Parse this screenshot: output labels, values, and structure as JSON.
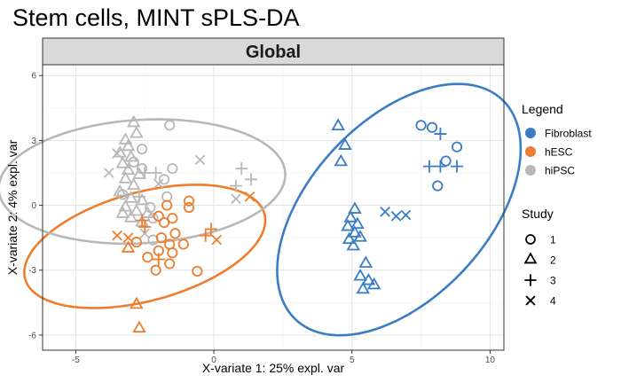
{
  "chart_data": {
    "type": "scatter",
    "title": "Stem cells, MINT sPLS-DA",
    "panel_label": "Global",
    "xlabel": "X-variate 1: 25% expl. var",
    "ylabel": "X-variate 2: 4% expl. var",
    "xlim": [
      -6.2,
      10.5
    ],
    "ylim": [
      -6.7,
      6.5
    ],
    "x_ticks": [
      -5,
      0,
      5,
      10
    ],
    "y_ticks": [
      -6,
      -3,
      0,
      3,
      6
    ],
    "x_tick_labels": [
      "-5",
      "0",
      "5",
      "10"
    ],
    "y_tick_labels": [
      "-6",
      "-3",
      "0",
      "3",
      "6"
    ],
    "grid": true,
    "legend_position": "right",
    "color_legend_title": "Legend",
    "shape_legend_title": "Study",
    "groups": [
      {
        "name": "Fibroblast",
        "color": "#3A7DC4"
      },
      {
        "name": "hESC",
        "color": "#EE7D2E"
      },
      {
        "name": "hiPSC",
        "color": "#B8B8B8"
      }
    ],
    "studies": [
      {
        "name": "1",
        "shape": "circle"
      },
      {
        "name": "2",
        "shape": "triangle"
      },
      {
        "name": "3",
        "shape": "plus"
      },
      {
        "name": "4",
        "shape": "cross"
      }
    ],
    "ellipses": [
      {
        "group": "Fibroblast",
        "cx": 6.7,
        "cy": -0.2,
        "rx": 6.4,
        "ry": 3.5,
        "angle_deg": 60
      },
      {
        "group": "hESC",
        "cx": -2.5,
        "cy": -1.9,
        "rx": 4.6,
        "ry": 2.45,
        "angle_deg": 22
      },
      {
        "group": "hiPSC",
        "cx": -2.6,
        "cy": 1.1,
        "rx": 5.2,
        "ry": 2.85,
        "angle_deg": 5
      }
    ],
    "points": [
      {
        "x": 7.5,
        "y": 3.7,
        "group": "Fibroblast",
        "study": "1"
      },
      {
        "x": 7.9,
        "y": 3.6,
        "group": "Fibroblast",
        "study": "1"
      },
      {
        "x": 8.8,
        "y": 2.7,
        "group": "Fibroblast",
        "study": "1"
      },
      {
        "x": 8.4,
        "y": 2.05,
        "group": "Fibroblast",
        "study": "1"
      },
      {
        "x": 8.1,
        "y": 0.9,
        "group": "Fibroblast",
        "study": "1"
      },
      {
        "x": 4.5,
        "y": 3.65,
        "group": "Fibroblast",
        "study": "2"
      },
      {
        "x": 4.75,
        "y": 2.75,
        "group": "Fibroblast",
        "study": "2"
      },
      {
        "x": 4.6,
        "y": 2.0,
        "group": "Fibroblast",
        "study": "2"
      },
      {
        "x": 5.1,
        "y": -0.2,
        "group": "Fibroblast",
        "study": "2"
      },
      {
        "x": 4.95,
        "y": -0.6,
        "group": "Fibroblast",
        "study": "2"
      },
      {
        "x": 5.2,
        "y": -0.9,
        "group": "Fibroblast",
        "study": "2"
      },
      {
        "x": 4.85,
        "y": -1.0,
        "group": "Fibroblast",
        "study": "2"
      },
      {
        "x": 5.1,
        "y": -1.3,
        "group": "Fibroblast",
        "study": "2"
      },
      {
        "x": 5.3,
        "y": -1.5,
        "group": "Fibroblast",
        "study": "2"
      },
      {
        "x": 4.9,
        "y": -1.6,
        "group": "Fibroblast",
        "study": "2"
      },
      {
        "x": 5.05,
        "y": -1.9,
        "group": "Fibroblast",
        "study": "2"
      },
      {
        "x": 5.5,
        "y": -2.7,
        "group": "Fibroblast",
        "study": "2"
      },
      {
        "x": 5.3,
        "y": -3.3,
        "group": "Fibroblast",
        "study": "2"
      },
      {
        "x": 5.6,
        "y": -3.5,
        "group": "Fibroblast",
        "study": "2"
      },
      {
        "x": 5.8,
        "y": -3.7,
        "group": "Fibroblast",
        "study": "2"
      },
      {
        "x": 5.4,
        "y": -3.9,
        "group": "Fibroblast",
        "study": "2"
      },
      {
        "x": 8.2,
        "y": 3.3,
        "group": "Fibroblast",
        "study": "3"
      },
      {
        "x": 7.8,
        "y": 1.8,
        "group": "Fibroblast",
        "study": "3"
      },
      {
        "x": 8.2,
        "y": 1.8,
        "group": "Fibroblast",
        "study": "3"
      },
      {
        "x": 8.8,
        "y": 1.8,
        "group": "Fibroblast",
        "study": "3"
      },
      {
        "x": 6.2,
        "y": -0.3,
        "group": "Fibroblast",
        "study": "4"
      },
      {
        "x": 6.6,
        "y": -0.5,
        "group": "Fibroblast",
        "study": "4"
      },
      {
        "x": 6.95,
        "y": -0.45,
        "group": "Fibroblast",
        "study": "4"
      },
      {
        "x": -1.7,
        "y": 0.0,
        "group": "hESC",
        "study": "1"
      },
      {
        "x": -0.9,
        "y": 0.2,
        "group": "hESC",
        "study": "1"
      },
      {
        "x": -0.9,
        "y": -0.1,
        "group": "hESC",
        "study": "1"
      },
      {
        "x": -2.0,
        "y": -0.5,
        "group": "hESC",
        "study": "1"
      },
      {
        "x": -1.5,
        "y": -0.6,
        "group": "hESC",
        "study": "1"
      },
      {
        "x": -1.8,
        "y": -0.8,
        "group": "hESC",
        "study": "1"
      },
      {
        "x": -1.4,
        "y": -1.3,
        "group": "hESC",
        "study": "1"
      },
      {
        "x": -1.9,
        "y": -1.5,
        "group": "hESC",
        "study": "1"
      },
      {
        "x": -1.6,
        "y": -1.8,
        "group": "hESC",
        "study": "1"
      },
      {
        "x": -1.1,
        "y": -1.8,
        "group": "hESC",
        "study": "1"
      },
      {
        "x": -2.0,
        "y": -2.1,
        "group": "hESC",
        "study": "1"
      },
      {
        "x": -1.5,
        "y": -2.2,
        "group": "hESC",
        "study": "1"
      },
      {
        "x": -2.4,
        "y": -2.4,
        "group": "hESC",
        "study": "1"
      },
      {
        "x": -1.6,
        "y": -2.7,
        "group": "hESC",
        "study": "1"
      },
      {
        "x": -2.1,
        "y": -3.0,
        "group": "hESC",
        "study": "1"
      },
      {
        "x": -0.6,
        "y": -3.05,
        "group": "hESC",
        "study": "1"
      },
      {
        "x": -2.8,
        "y": -1.7,
        "group": "hESC",
        "study": "1"
      },
      {
        "x": -3.1,
        "y": -2.0,
        "group": "hESC",
        "study": "2"
      },
      {
        "x": -2.8,
        "y": -4.6,
        "group": "hESC",
        "study": "2"
      },
      {
        "x": -2.7,
        "y": -5.7,
        "group": "hESC",
        "study": "2"
      },
      {
        "x": -2.0,
        "y": -2.5,
        "group": "hESC",
        "study": "3"
      },
      {
        "x": -2.6,
        "y": -0.7,
        "group": "hESC",
        "study": "3"
      },
      {
        "x": -2.5,
        "y": -1.0,
        "group": "hESC",
        "study": "3"
      },
      {
        "x": -0.3,
        "y": -1.4,
        "group": "hESC",
        "study": "3"
      },
      {
        "x": -0.1,
        "y": -1.1,
        "group": "hESC",
        "study": "3"
      },
      {
        "x": -3.5,
        "y": -1.4,
        "group": "hESC",
        "study": "4"
      },
      {
        "x": -3.1,
        "y": -1.5,
        "group": "hESC",
        "study": "4"
      },
      {
        "x": 0.1,
        "y": -1.6,
        "group": "hESC",
        "study": "4"
      },
      {
        "x": 1.3,
        "y": 0.4,
        "group": "hESC",
        "study": "4"
      },
      {
        "x": -1.6,
        "y": 3.7,
        "group": "hiPSC",
        "study": "1"
      },
      {
        "x": -2.9,
        "y": 2.0,
        "group": "hiPSC",
        "study": "1"
      },
      {
        "x": -2.6,
        "y": 2.6,
        "group": "hiPSC",
        "study": "1"
      },
      {
        "x": -2.6,
        "y": 1.7,
        "group": "hiPSC",
        "study": "1"
      },
      {
        "x": -1.5,
        "y": 1.7,
        "group": "hiPSC",
        "study": "1"
      },
      {
        "x": -1.8,
        "y": 1.2,
        "group": "hiPSC",
        "study": "1"
      },
      {
        "x": -1.7,
        "y": 0.4,
        "group": "hiPSC",
        "study": "1"
      },
      {
        "x": -2.3,
        "y": -0.1,
        "group": "hiPSC",
        "study": "1"
      },
      {
        "x": -2.2,
        "y": -0.6,
        "group": "hiPSC",
        "study": "1"
      },
      {
        "x": -3.3,
        "y": 0.5,
        "group": "hiPSC",
        "study": "1"
      },
      {
        "x": -2.2,
        "y": -1.6,
        "group": "hiPSC",
        "study": "1"
      },
      {
        "x": -2.9,
        "y": 3.8,
        "group": "hiPSC",
        "study": "2"
      },
      {
        "x": -2.8,
        "y": 3.3,
        "group": "hiPSC",
        "study": "2"
      },
      {
        "x": -3.2,
        "y": 3.0,
        "group": "hiPSC",
        "study": "2"
      },
      {
        "x": -3.1,
        "y": 2.7,
        "group": "hiPSC",
        "study": "2"
      },
      {
        "x": -3.4,
        "y": 2.4,
        "group": "hiPSC",
        "study": "2"
      },
      {
        "x": -3.0,
        "y": 2.2,
        "group": "hiPSC",
        "study": "2"
      },
      {
        "x": -3.3,
        "y": 1.9,
        "group": "hiPSC",
        "study": "2"
      },
      {
        "x": -3.1,
        "y": 1.6,
        "group": "hiPSC",
        "study": "2"
      },
      {
        "x": -2.7,
        "y": 1.4,
        "group": "hiPSC",
        "study": "2"
      },
      {
        "x": -3.2,
        "y": 1.2,
        "group": "hiPSC",
        "study": "2"
      },
      {
        "x": -2.9,
        "y": 0.9,
        "group": "hiPSC",
        "study": "2"
      },
      {
        "x": -3.4,
        "y": 0.6,
        "group": "hiPSC",
        "study": "2"
      },
      {
        "x": -3.0,
        "y": 0.3,
        "group": "hiPSC",
        "study": "2"
      },
      {
        "x": -2.6,
        "y": 0.2,
        "group": "hiPSC",
        "study": "2"
      },
      {
        "x": -3.2,
        "y": -0.1,
        "group": "hiPSC",
        "study": "2"
      },
      {
        "x": -2.8,
        "y": -0.3,
        "group": "hiPSC",
        "study": "2"
      },
      {
        "x": -3.3,
        "y": -0.4,
        "group": "hiPSC",
        "study": "2"
      },
      {
        "x": -2.4,
        "y": -0.4,
        "group": "hiPSC",
        "study": "2"
      },
      {
        "x": -3.0,
        "y": -0.6,
        "group": "hiPSC",
        "study": "2"
      },
      {
        "x": -2.6,
        "y": -0.8,
        "group": "hiPSC",
        "study": "2"
      },
      {
        "x": -2.5,
        "y": 1.5,
        "group": "hiPSC",
        "study": "3"
      },
      {
        "x": -2.1,
        "y": 1.5,
        "group": "hiPSC",
        "study": "3"
      },
      {
        "x": -2.7,
        "y": 0.4,
        "group": "hiPSC",
        "study": "3"
      },
      {
        "x": 1.0,
        "y": 1.7,
        "group": "hiPSC",
        "study": "3"
      },
      {
        "x": 1.35,
        "y": 1.2,
        "group": "hiPSC",
        "study": "3"
      },
      {
        "x": 0.8,
        "y": 0.9,
        "group": "hiPSC",
        "study": "3"
      },
      {
        "x": -3.5,
        "y": 2.4,
        "group": "hiPSC",
        "study": "4"
      },
      {
        "x": -3.8,
        "y": 1.5,
        "group": "hiPSC",
        "study": "4"
      },
      {
        "x": -2.0,
        "y": 1.0,
        "group": "hiPSC",
        "study": "4"
      },
      {
        "x": -0.5,
        "y": 2.1,
        "group": "hiPSC",
        "study": "4"
      },
      {
        "x": 0.8,
        "y": 0.3,
        "group": "hiPSC",
        "study": "4"
      },
      {
        "x": -2.5,
        "y": -1.3,
        "group": "hiPSC",
        "study": "4"
      }
    ]
  }
}
